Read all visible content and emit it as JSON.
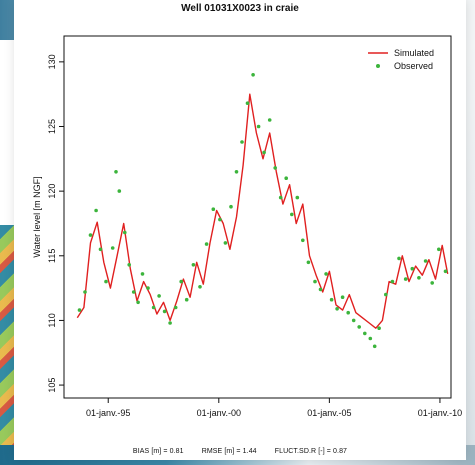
{
  "chart_data": {
    "type": "line",
    "title": "Well 01031X0023 in craie",
    "xlabel": "",
    "ylabel": "Water level [m NGF]",
    "x_ticks": [
      "01-janv.-95",
      "01-janv.-00",
      "01-janv.-05",
      "01-janv.-10"
    ],
    "y_ticks": [
      105,
      110,
      115,
      120,
      125,
      130
    ],
    "xlim": [
      1993.0,
      2010.5
    ],
    "ylim": [
      104,
      132
    ],
    "legend": {
      "position": "top-right"
    },
    "series": [
      {
        "name": "Simulated",
        "color": "#e02020",
        "style": "line",
        "points": [
          [
            1993.6,
            110.2
          ],
          [
            1993.9,
            111.0
          ],
          [
            1994.2,
            116.0
          ],
          [
            1994.5,
            117.6
          ],
          [
            1994.8,
            114.5
          ],
          [
            1995.1,
            112.5
          ],
          [
            1995.4,
            115.0
          ],
          [
            1995.7,
            117.5
          ],
          [
            1996.0,
            114.0
          ],
          [
            1996.3,
            111.5
          ],
          [
            1996.6,
            113.0
          ],
          [
            1996.9,
            112.0
          ],
          [
            1997.2,
            110.5
          ],
          [
            1997.5,
            111.4
          ],
          [
            1997.8,
            110.0
          ],
          [
            1998.1,
            111.5
          ],
          [
            1998.4,
            113.2
          ],
          [
            1998.7,
            111.8
          ],
          [
            1999.0,
            114.5
          ],
          [
            1999.3,
            112.8
          ],
          [
            1999.6,
            116.0
          ],
          [
            1999.9,
            118.5
          ],
          [
            2000.2,
            117.5
          ],
          [
            2000.5,
            115.5
          ],
          [
            2000.8,
            118.0
          ],
          [
            2001.1,
            122.0
          ],
          [
            2001.4,
            127.5
          ],
          [
            2001.7,
            124.5
          ],
          [
            2002.0,
            122.5
          ],
          [
            2002.3,
            124.5
          ],
          [
            2002.6,
            121.5
          ],
          [
            2002.9,
            119.0
          ],
          [
            2003.2,
            120.5
          ],
          [
            2003.5,
            117.5
          ],
          [
            2003.8,
            119.0
          ],
          [
            2004.1,
            115.0
          ],
          [
            2004.4,
            113.5
          ],
          [
            2004.7,
            112.2
          ],
          [
            2005.0,
            113.8
          ],
          [
            2005.3,
            111.2
          ],
          [
            2005.6,
            110.8
          ],
          [
            2005.9,
            112.0
          ],
          [
            2006.2,
            110.6
          ],
          [
            2006.5,
            110.2
          ],
          [
            2006.8,
            109.8
          ],
          [
            2007.1,
            109.4
          ],
          [
            2007.4,
            110.0
          ],
          [
            2007.7,
            113.0
          ],
          [
            2008.0,
            112.8
          ],
          [
            2008.3,
            115.0
          ],
          [
            2008.6,
            113.0
          ],
          [
            2008.9,
            114.2
          ],
          [
            2009.2,
            113.5
          ],
          [
            2009.5,
            114.7
          ],
          [
            2009.8,
            113.2
          ],
          [
            2010.1,
            115.8
          ],
          [
            2010.35,
            113.6
          ]
        ]
      },
      {
        "name": "Observed",
        "color": "#3cb43c",
        "style": "points",
        "points": [
          [
            1993.7,
            110.8
          ],
          [
            1993.95,
            112.2
          ],
          [
            1994.2,
            116.6
          ],
          [
            1994.45,
            118.5
          ],
          [
            1994.65,
            115.5
          ],
          [
            1994.9,
            113.0
          ],
          [
            1995.2,
            115.6
          ],
          [
            1995.35,
            121.5
          ],
          [
            1995.5,
            120.0
          ],
          [
            1995.75,
            116.8
          ],
          [
            1995.95,
            114.3
          ],
          [
            1996.15,
            112.2
          ],
          [
            1996.35,
            111.4
          ],
          [
            1996.55,
            113.6
          ],
          [
            1996.8,
            112.5
          ],
          [
            1997.05,
            111.0
          ],
          [
            1997.3,
            111.9
          ],
          [
            1997.55,
            110.7
          ],
          [
            1997.8,
            109.8
          ],
          [
            1998.05,
            111.0
          ],
          [
            1998.3,
            113.0
          ],
          [
            1998.55,
            111.6
          ],
          [
            1998.85,
            114.3
          ],
          [
            1999.15,
            112.6
          ],
          [
            1999.45,
            115.9
          ],
          [
            1999.75,
            118.6
          ],
          [
            2000.05,
            117.8
          ],
          [
            2000.3,
            116.0
          ],
          [
            2000.55,
            118.8
          ],
          [
            2000.8,
            121.5
          ],
          [
            2001.05,
            123.8
          ],
          [
            2001.3,
            126.8
          ],
          [
            2001.55,
            129.0
          ],
          [
            2001.8,
            125.0
          ],
          [
            2002.05,
            123.0
          ],
          [
            2002.3,
            125.5
          ],
          [
            2002.55,
            121.8
          ],
          [
            2002.8,
            119.5
          ],
          [
            2003.05,
            121.0
          ],
          [
            2003.3,
            118.2
          ],
          [
            2003.55,
            119.5
          ],
          [
            2003.8,
            116.2
          ],
          [
            2004.05,
            114.5
          ],
          [
            2004.35,
            113.0
          ],
          [
            2004.6,
            112.4
          ],
          [
            2004.85,
            113.6
          ],
          [
            2005.1,
            111.6
          ],
          [
            2005.35,
            110.9
          ],
          [
            2005.6,
            111.8
          ],
          [
            2005.85,
            110.6
          ],
          [
            2006.1,
            110.0
          ],
          [
            2006.35,
            109.5
          ],
          [
            2006.6,
            109.0
          ],
          [
            2006.85,
            108.6
          ],
          [
            2007.05,
            108.0
          ],
          [
            2007.25,
            109.4
          ],
          [
            2007.55,
            112.0
          ],
          [
            2007.85,
            113.0
          ],
          [
            2008.15,
            114.8
          ],
          [
            2008.45,
            113.2
          ],
          [
            2008.75,
            114.0
          ],
          [
            2009.05,
            113.3
          ],
          [
            2009.35,
            114.6
          ],
          [
            2009.65,
            112.9
          ],
          [
            2009.95,
            115.5
          ],
          [
            2010.25,
            113.8
          ]
        ]
      }
    ]
  },
  "footer": {
    "bias": "BIAS [m] = 0.81",
    "rmse": "RMSE [m] = 1.44",
    "fluct": "FLUCT.SD.R [-] = 0.87"
  }
}
